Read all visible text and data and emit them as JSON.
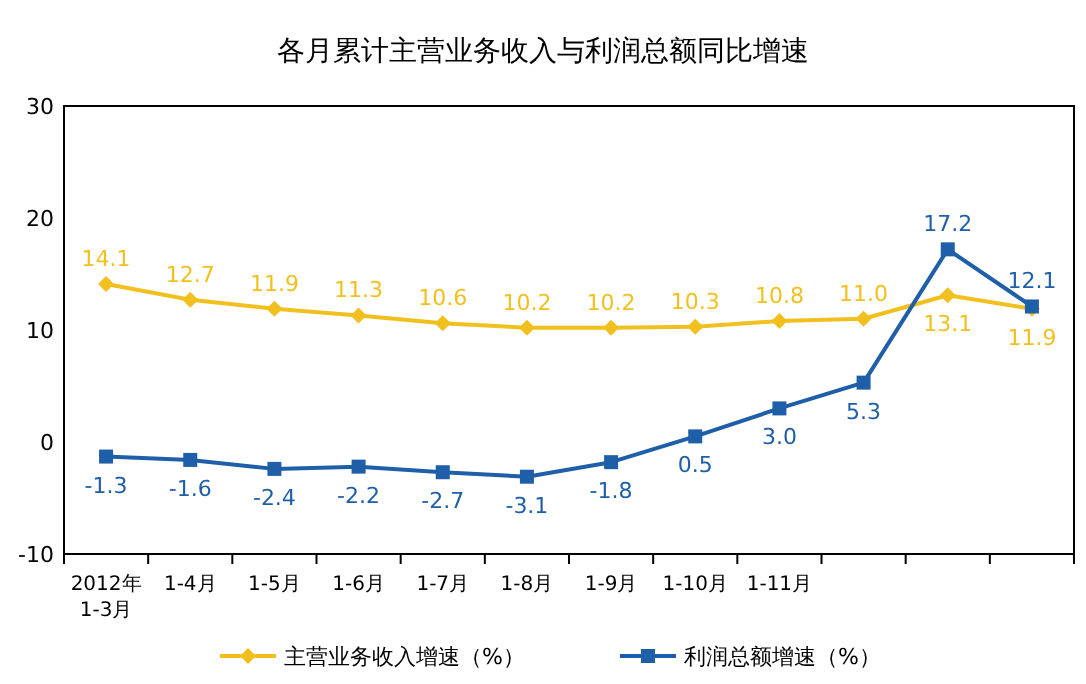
{
  "chart_data": {
    "type": "line",
    "title": "各月累计主营业务收入与利润总额同比增速",
    "categories": [
      "2012年\n1-3月",
      "1-4月",
      "1-5月",
      "1-6月",
      "1-7月",
      "1-8月",
      "1-9月",
      "1-10月",
      "1-11月",
      null,
      null,
      null
    ],
    "series": [
      {
        "name": "主营业务收入增速（%）",
        "color": "#f2c01e",
        "marker": "diamond",
        "values": [
          14.1,
          12.7,
          11.9,
          11.3,
          10.6,
          10.2,
          10.2,
          10.3,
          10.8,
          11.0,
          13.1,
          11.9
        ],
        "value_labels": [
          "14.1",
          "12.7",
          "11.9",
          "11.3",
          "10.6",
          "10.2",
          "10.2",
          "10.3",
          "10.8",
          "11.0",
          "13.1",
          "11.9"
        ]
      },
      {
        "name": "利润总额增速（%）",
        "color": "#1f5ea8",
        "marker": "square",
        "values": [
          -1.3,
          -1.6,
          -2.4,
          -2.2,
          -2.7,
          -3.1,
          -1.8,
          0.5,
          3.0,
          5.3,
          17.2,
          12.1
        ],
        "value_labels": [
          "-1.3",
          "-1.6",
          "-2.4",
          "-2.2",
          "-2.7",
          "-3.1",
          "-1.8",
          "0.5",
          "3.0",
          "5.3",
          "17.2",
          "12.1"
        ]
      }
    ],
    "ylim": [
      -10,
      30
    ],
    "yticks": [
      -10,
      0,
      10,
      20,
      30
    ],
    "grid": false,
    "legend": "bottom"
  }
}
